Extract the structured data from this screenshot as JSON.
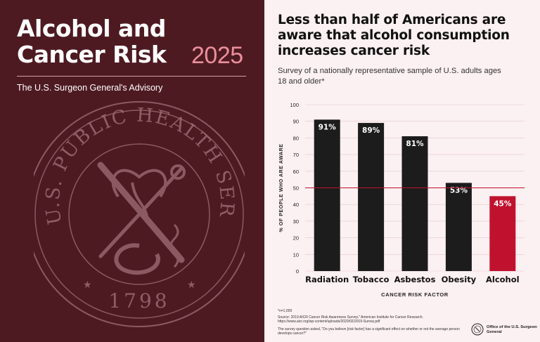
{
  "left": {
    "title": "Alcohol and Cancer Risk",
    "year": "2025",
    "subtitle": "The U.S. Surgeon General's Advisory",
    "seal": {
      "ring_text": "U.S. PUBLIC HEALTH SERVICE",
      "year": "1798",
      "icon": "public-health-service-seal"
    }
  },
  "right": {
    "headline": "Less than half of Americans are aware that alcohol consumption increases cancer risk",
    "subhead": "Survey of a nationally representative sample of U.S. adults ages 18 and older*",
    "footnote_n": "*n=1,009",
    "footnote_source": "Source: 2019 AICR Cancer Risk Awareness Survey.\" American Institute for Cancer Research. https://www.aicr.org/wp-content/uploads/2020/02/2019-Survey.pdf",
    "footnote_question": "The survey question asked, \"Do you believe [risk factor] has a significant effect on whether or not the average person develops cancer?\"",
    "office_label": "Office of the U.S. Surgeon General",
    "office_icon": "surgeon-general-seal-icon"
  },
  "colors": {
    "left_bg": "#4e1a22",
    "page_bg": "#fbf0f2",
    "bar_default": "#1c1c1c",
    "bar_highlight": "#c0122e",
    "reference_line": "#c0122e",
    "year_accent": "#e98f9b"
  },
  "chart_data": {
    "type": "bar",
    "categories": [
      "Radiation",
      "Tobacco",
      "Asbestos",
      "Obesity",
      "Alcohol"
    ],
    "values": [
      91,
      89,
      81,
      53,
      45
    ],
    "value_labels": [
      "91%",
      "89%",
      "81%",
      "53%",
      "45%"
    ],
    "highlight": "Alcohol",
    "xlabel": "CANCER RISK FACTOR",
    "ylabel": "% OF PEOPLE WHO ARE AWARE",
    "ylim": [
      0,
      100
    ],
    "yticks": [
      0,
      10,
      20,
      30,
      40,
      50,
      60,
      70,
      80,
      90,
      100
    ],
    "reference_line": 50,
    "grid": true,
    "legend": "none"
  }
}
